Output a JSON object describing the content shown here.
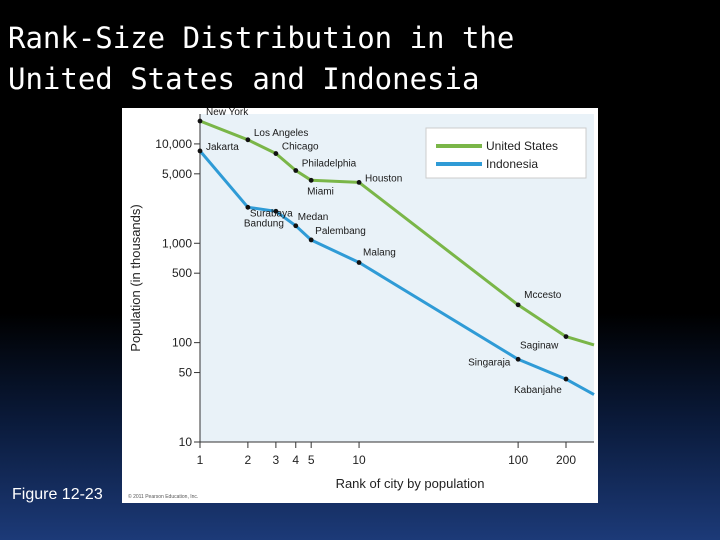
{
  "slide": {
    "title": "Rank-Size Distribution in the\nUnited States and Indonesia",
    "figure_label": "Figure 12-23",
    "copyright": "© 2011 Pearson Education, Inc."
  },
  "colors": {
    "us": "#7ab648",
    "indonesia": "#2f9bd6",
    "background": "#000000",
    "figure_bg": "#e9f2f8"
  },
  "chart_data": {
    "type": "line",
    "title": "",
    "xlabel": "Rank of city by population",
    "ylabel": "Population (in thousands)",
    "x_scale": "log",
    "y_scale": "log",
    "xlim": [
      1,
      300
    ],
    "ylim": [
      10,
      20000
    ],
    "x_ticks": [
      1,
      2,
      3,
      4,
      5,
      10,
      100,
      200
    ],
    "x_tick_labels": [
      "1",
      "2",
      "3",
      "4",
      "5",
      "10",
      "100",
      "200"
    ],
    "y_ticks": [
      10,
      50,
      100,
      500,
      1000,
      5000,
      10000
    ],
    "y_tick_labels": [
      "10",
      "50",
      "100",
      "500",
      "1,000",
      "5,000",
      "10,000"
    ],
    "legend": {
      "position": "top-right",
      "entries": [
        "United States",
        "Indonesia"
      ]
    },
    "series": [
      {
        "name": "United States",
        "points": [
          {
            "x": 1,
            "y": 17000,
            "label": "New York"
          },
          {
            "x": 2,
            "y": 11000,
            "label": "Los Angeles"
          },
          {
            "x": 3,
            "y": 8000,
            "label": "Chicago"
          },
          {
            "x": 4,
            "y": 5400,
            "label": "Philadelphia"
          },
          {
            "x": 5,
            "y": 4300,
            "label": "Miami"
          },
          {
            "x": 10,
            "y": 4100,
            "label": "Houston"
          },
          {
            "x": 100,
            "y": 240,
            "label": "Mccesto"
          },
          {
            "x": 200,
            "y": 115,
            "label": "Saginaw"
          },
          {
            "x": 300,
            "y": 95,
            "label": ""
          }
        ]
      },
      {
        "name": "Indonesia",
        "points": [
          {
            "x": 1,
            "y": 8500,
            "label": "Jakarta"
          },
          {
            "x": 2,
            "y": 2300,
            "label": "Surabaya"
          },
          {
            "x": 3,
            "y": 2100,
            "label": "Bandung"
          },
          {
            "x": 4,
            "y": 1500,
            "label": "Medan"
          },
          {
            "x": 5,
            "y": 1080,
            "label": "Palembang"
          },
          {
            "x": 10,
            "y": 640,
            "label": "Malang"
          },
          {
            "x": 100,
            "y": 68,
            "label": "Singaraja"
          },
          {
            "x": 200,
            "y": 43,
            "label": "Kabanjahe"
          },
          {
            "x": 300,
            "y": 30,
            "label": ""
          }
        ]
      }
    ]
  }
}
